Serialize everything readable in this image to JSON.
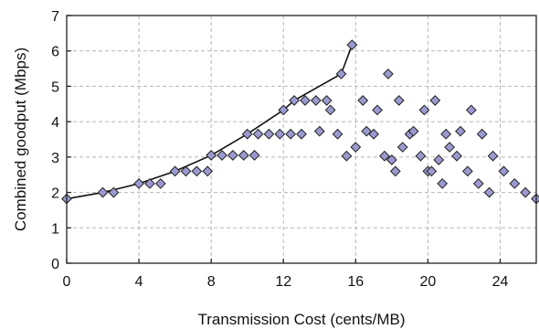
{
  "chart_data": {
    "type": "scatter",
    "xlabel": "Transmission Cost (cents/MB)",
    "ylabel": "Combined goodput (Mbps)",
    "xlim": [
      0,
      26
    ],
    "ylim": [
      0,
      7
    ],
    "xticks": [
      0,
      4,
      8,
      12,
      16,
      20,
      24
    ],
    "yticks": [
      0,
      1,
      2,
      3,
      4,
      5,
      6,
      7
    ],
    "grid": true,
    "colors": {
      "marker_fill": "#9a9ad0",
      "marker_edge": "#222222",
      "line": "#111111",
      "grid": "#b5b5b5"
    },
    "series": [
      {
        "marker": "diamond",
        "points": [
          [
            0.0,
            1.82
          ],
          [
            2.0,
            2.0
          ],
          [
            2.6,
            2.0
          ],
          [
            4.0,
            2.25
          ],
          [
            4.6,
            2.25
          ],
          [
            5.2,
            2.25
          ],
          [
            6.0,
            2.6
          ],
          [
            6.6,
            2.6
          ],
          [
            7.2,
            2.6
          ],
          [
            7.8,
            2.6
          ],
          [
            8.0,
            3.05
          ],
          [
            8.6,
            3.05
          ],
          [
            9.2,
            3.05
          ],
          [
            9.8,
            3.05
          ],
          [
            10.4,
            3.05
          ],
          [
            10.0,
            3.65
          ],
          [
            10.6,
            3.65
          ],
          [
            11.2,
            3.65
          ],
          [
            11.8,
            3.65
          ],
          [
            12.4,
            3.65
          ],
          [
            13.0,
            3.65
          ],
          [
            12.0,
            4.33
          ],
          [
            12.6,
            4.6
          ],
          [
            13.2,
            4.6
          ],
          [
            13.8,
            4.6
          ],
          [
            14.0,
            3.73
          ],
          [
            14.4,
            4.6
          ],
          [
            14.6,
            4.33
          ],
          [
            15.0,
            3.65
          ],
          [
            15.2,
            5.35
          ],
          [
            15.5,
            3.03
          ],
          [
            15.8,
            6.17
          ],
          [
            16.0,
            3.28
          ],
          [
            16.4,
            4.6
          ],
          [
            16.6,
            3.73
          ],
          [
            17.0,
            3.65
          ],
          [
            17.2,
            4.33
          ],
          [
            17.6,
            3.03
          ],
          [
            17.8,
            5.35
          ],
          [
            18.0,
            2.92
          ],
          [
            18.2,
            2.6
          ],
          [
            18.4,
            4.6
          ],
          [
            18.6,
            3.28
          ],
          [
            19.0,
            3.65
          ],
          [
            19.2,
            3.73
          ],
          [
            19.6,
            3.03
          ],
          [
            19.8,
            4.33
          ],
          [
            20.0,
            2.6
          ],
          [
            20.2,
            2.6
          ],
          [
            20.4,
            4.6
          ],
          [
            20.6,
            2.92
          ],
          [
            20.8,
            2.25
          ],
          [
            21.0,
            3.65
          ],
          [
            21.2,
            3.28
          ],
          [
            21.6,
            3.03
          ],
          [
            21.8,
            3.73
          ],
          [
            22.2,
            2.6
          ],
          [
            22.4,
            4.33
          ],
          [
            22.8,
            2.25
          ],
          [
            23.0,
            3.65
          ],
          [
            23.4,
            2.0
          ],
          [
            23.6,
            3.03
          ],
          [
            24.2,
            2.6
          ],
          [
            24.8,
            2.25
          ],
          [
            25.4,
            2.0
          ],
          [
            26.0,
            1.82
          ]
        ]
      }
    ],
    "frontier_line": [
      [
        0.0,
        1.82
      ],
      [
        2.0,
        2.0
      ],
      [
        4.0,
        2.25
      ],
      [
        6.0,
        2.6
      ],
      [
        8.0,
        3.05
      ],
      [
        10.0,
        3.65
      ],
      [
        12.0,
        4.33
      ],
      [
        12.6,
        4.6
      ],
      [
        15.2,
        5.35
      ],
      [
        15.8,
        6.17
      ]
    ]
  }
}
